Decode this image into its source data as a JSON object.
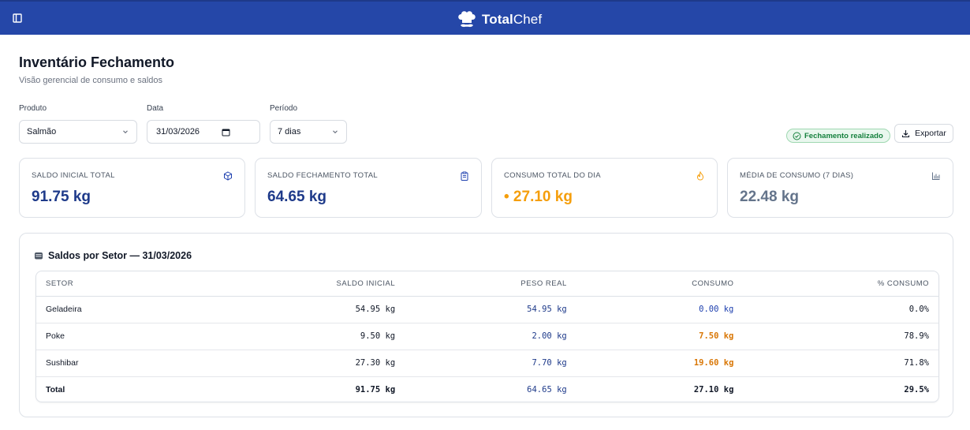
{
  "brand": {
    "bold": "Total",
    "light": "Chef"
  },
  "page": {
    "title": "Inventário Fechamento",
    "subtitle": "Visão gerencial de consumo e saldos"
  },
  "filters": {
    "product": {
      "label": "Produto",
      "value": "Salmão"
    },
    "date": {
      "label": "Data",
      "value": "31/03/2026"
    },
    "period": {
      "label": "Período",
      "value": "7 dias"
    }
  },
  "status_badge": "Fechamento realizado",
  "export_label": "Exportar",
  "cards": [
    {
      "label": "SALDO INICIAL TOTAL",
      "value": "91.75 kg",
      "color": "#1e3a8a",
      "icon": "box-icon"
    },
    {
      "label": "SALDO FECHAMENTO TOTAL",
      "value": "64.65 kg",
      "color": "#1e3a8a",
      "icon": "clipboard-icon"
    },
    {
      "label": "CONSUMO TOTAL DO DIA",
      "value": "• 27.10 kg",
      "color": "#f59e0b",
      "icon": "flame-icon"
    },
    {
      "label": "MÉDIA DE CONSUMO (7 DIAS)",
      "value": "22.48 kg",
      "color": "#64748b",
      "icon": "bar-chart-icon"
    }
  ],
  "sector_panel": {
    "title": "Saldos por Setor — 31/03/2026",
    "columns": [
      "SETOR",
      "SALDO INICIAL",
      "PESO REAL",
      "CONSUMO",
      "% CONSUMO"
    ],
    "rows": [
      {
        "setor": "Geladeira",
        "saldo_inicial": "54.95 kg",
        "peso_real": "54.95 kg",
        "consumo": "0.00 kg",
        "pct": "0.0%"
      },
      {
        "setor": "Poke",
        "saldo_inicial": "9.50 kg",
        "peso_real": "2.00 kg",
        "consumo": "7.50 kg",
        "pct": "78.9%"
      },
      {
        "setor": "Sushibar",
        "saldo_inicial": "27.30 kg",
        "peso_real": "7.70 kg",
        "consumo": "19.60 kg",
        "pct": "71.8%"
      }
    ],
    "total": {
      "setor": "Total",
      "saldo_inicial": "91.75 kg",
      "peso_real": "64.65 kg",
      "consumo": "27.10 kg",
      "pct": "29.5%"
    }
  },
  "colors": {
    "header": "#2547a8",
    "blue_value": "#1e3a8a",
    "orange_value": "#d97706"
  }
}
